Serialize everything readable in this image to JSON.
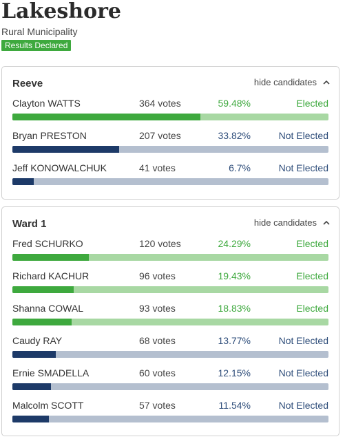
{
  "header": {
    "title": "Lakeshore",
    "subtitle": "Rural Municipality",
    "badge": "Results Declared"
  },
  "colors": {
    "elected": "#3ea93e",
    "elected_track": "#a8d8a3",
    "not_elected": "#1d3a68",
    "not_elected_track": "#b4bfcf"
  },
  "races": [
    {
      "title": "Reeve",
      "toggle_label": "hide candidates",
      "candidates": [
        {
          "name": "Clayton WATTS",
          "votes": "364 votes",
          "pct": "59.48%",
          "share": 59.48,
          "status": "Elected",
          "elected": true
        },
        {
          "name": "Bryan PRESTON",
          "votes": "207 votes",
          "pct": "33.82%",
          "share": 33.82,
          "status": "Not Elected",
          "elected": false
        },
        {
          "name": "Jeff KONOWALCHUK",
          "votes": "41 votes",
          "pct": "6.7%",
          "share": 6.7,
          "status": "Not Elected",
          "elected": false
        }
      ]
    },
    {
      "title": "Ward 1",
      "toggle_label": "hide candidates",
      "candidates": [
        {
          "name": "Fred SCHURKO",
          "votes": "120 votes",
          "pct": "24.29%",
          "share": 24.29,
          "status": "Elected",
          "elected": true
        },
        {
          "name": "Richard KACHUR",
          "votes": "96 votes",
          "pct": "19.43%",
          "share": 19.43,
          "status": "Elected",
          "elected": true
        },
        {
          "name": "Shanna COWAL",
          "votes": "93 votes",
          "pct": "18.83%",
          "share": 18.83,
          "status": "Elected",
          "elected": true
        },
        {
          "name": "Caudy RAY",
          "votes": "68 votes",
          "pct": "13.77%",
          "share": 13.77,
          "status": "Not Elected",
          "elected": false
        },
        {
          "name": "Ernie SMADELLA",
          "votes": "60 votes",
          "pct": "12.15%",
          "share": 12.15,
          "status": "Not Elected",
          "elected": false
        },
        {
          "name": "Malcolm SCOTT",
          "votes": "57 votes",
          "pct": "11.54%",
          "share": 11.54,
          "status": "Not Elected",
          "elected": false
        }
      ]
    }
  ]
}
